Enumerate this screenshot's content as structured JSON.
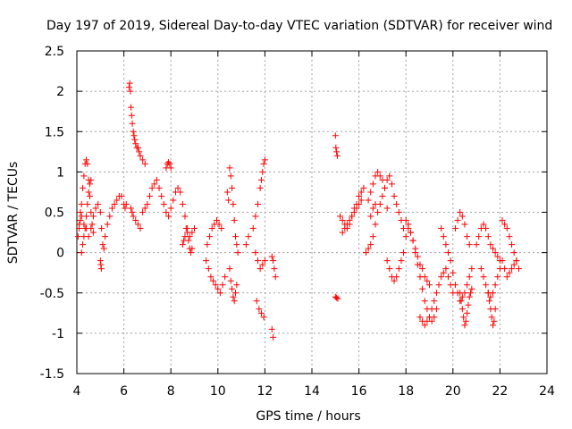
{
  "chart_data": {
    "type": "scatter",
    "title": "Day 197 of 2019, Sidereal Day-to-day VTEC variation (SDTVAR) for receiver wind",
    "xlabel": "GPS time / hours",
    "ylabel": "SDTVAR / TECUs",
    "xlim": [
      4,
      24
    ],
    "ylim": [
      -1.5,
      2.5
    ],
    "xticks": [
      4,
      6,
      8,
      10,
      12,
      14,
      16,
      18,
      20,
      22,
      24
    ],
    "yticks": [
      -1.5,
      -1,
      -0.5,
      0,
      0.5,
      1,
      1.5,
      2,
      2.5
    ],
    "xtick_labels": [
      "4",
      "6",
      "8",
      "10",
      "12",
      "14",
      "16",
      "18",
      "20",
      "22",
      "24"
    ],
    "ytick_labels": [
      "-1.5",
      "-1",
      "-0.5",
      "0",
      "0.5",
      "1",
      "1.5",
      "2",
      "2.5"
    ],
    "grid": true,
    "marker": "+",
    "color": "#ff0000",
    "series": [
      {
        "name": "SDTVAR",
        "x": [
          4.05,
          4.1,
          4.15,
          4.2,
          4.25,
          4.3,
          4.35,
          4.4,
          4.45,
          4.5,
          4.55,
          4.6,
          4.65,
          4.7,
          4.2,
          4.25,
          4.3,
          4.35,
          4.4,
          4.45,
          4.5,
          4.55,
          4.6,
          4.1,
          4.15,
          4.2,
          4.3,
          4.4,
          4.5,
          4.6,
          4.7,
          4.8,
          4.9,
          5.0,
          5.05,
          5.1,
          5.15,
          5.2,
          5.3,
          5.4,
          5.5,
          5.6,
          5.7,
          5.8,
          5.9,
          6.0,
          6.05,
          6.1,
          5.0,
          5.02,
          5.04,
          6.22,
          6.25,
          6.28,
          6.3,
          6.33,
          6.36,
          6.4,
          6.43,
          6.46,
          6.5,
          6.55,
          6.6,
          6.65,
          6.7,
          6.8,
          6.9,
          6.3,
          6.35,
          6.4,
          6.5,
          6.6,
          6.7,
          6.8,
          6.9,
          7.0,
          7.1,
          7.2,
          7.3,
          7.4,
          7.5,
          7.6,
          7.7,
          7.8,
          7.9,
          8.0,
          8.1,
          8.2,
          8.3,
          8.4,
          8.5,
          8.6,
          8.7,
          8.8,
          8.9,
          9.0,
          7.8,
          7.85,
          7.9,
          7.95,
          8.0,
          8.5,
          8.55,
          8.6,
          8.65,
          8.7,
          8.75,
          8.8,
          8.85,
          8.9,
          9.5,
          9.6,
          9.7,
          9.8,
          9.9,
          10.0,
          10.1,
          10.2,
          10.3,
          9.55,
          9.65,
          9.75,
          9.85,
          9.95,
          10.05,
          10.15,
          10.5,
          10.55,
          10.6,
          10.65,
          10.7,
          10.75,
          10.8,
          10.85,
          10.5,
          10.55,
          10.6,
          10.65,
          10.7,
          10.75,
          10.8,
          10.4,
          10.45,
          11.2,
          11.3,
          11.5,
          11.6,
          11.7,
          11.8,
          11.85,
          11.9,
          11.95,
          12.0,
          11.6,
          11.7,
          11.8,
          11.9,
          12.0,
          11.65,
          11.75,
          11.85,
          11.95,
          12.3,
          12.35,
          12.4,
          12.45,
          12.3,
          12.35,
          15.0,
          15.02,
          15.05,
          15.08,
          15.0,
          15.05,
          15.1,
          15.2,
          15.3,
          15.4,
          15.5,
          15.6,
          15.7,
          15.8,
          15.9,
          16.0,
          16.1,
          16.2,
          15.3,
          15.4,
          15.5,
          15.6,
          15.7,
          15.8,
          15.9,
          16.0,
          16.1,
          16.3,
          16.4,
          16.5,
          16.6,
          16.7,
          16.8,
          16.9,
          17.0,
          17.1,
          17.2,
          16.4,
          16.5,
          16.6,
          16.7,
          16.8,
          16.9,
          17.0,
          16.5,
          16.6,
          16.7,
          17.1,
          17.2,
          17.3,
          17.4,
          17.5,
          17.6,
          17.7,
          17.8,
          17.9,
          17.2,
          17.3,
          17.4,
          17.5,
          17.6,
          17.7,
          17.8,
          17.9,
          18.0,
          18.1,
          18.2,
          18.3,
          18.4,
          18.5,
          18.6,
          18.7,
          18.8,
          18.9,
          19.0,
          19.1,
          19.2,
          19.3,
          18.0,
          18.1,
          18.2,
          18.3,
          18.4,
          18.5,
          18.6,
          18.7,
          18.8,
          18.9,
          19.0,
          18.6,
          18.7,
          18.8,
          18.9,
          19.0,
          19.1,
          19.2,
          19.3,
          19.4,
          19.5,
          19.6,
          19.7,
          19.8,
          19.9,
          20.0,
          19.5,
          19.6,
          19.7,
          19.8,
          19.9,
          20.0,
          20.1,
          20.2,
          20.3,
          20.4,
          20.5,
          20.6,
          20.7,
          20.8,
          20.1,
          20.2,
          20.3,
          20.4,
          20.5,
          20.6,
          20.7,
          20.3,
          20.35,
          20.4,
          20.45,
          20.5,
          20.55,
          20.6,
          20.65,
          20.7,
          20.75,
          20.8,
          21.0,
          21.1,
          21.2,
          21.3,
          21.4,
          21.5,
          21.6,
          21.7,
          21.8,
          21.9,
          22.0,
          21.2,
          21.3,
          21.4,
          21.5,
          21.6,
          21.7,
          21.8,
          21.9,
          22.0,
          21.5,
          21.55,
          21.6,
          21.65,
          21.7,
          21.75,
          21.8,
          22.1,
          22.2,
          22.3,
          22.4,
          22.5,
          22.6,
          22.7,
          22.8,
          22.1,
          22.2,
          22.3,
          22.4,
          22.5,
          22.6,
          22.7
        ],
        "y": [
          0.2,
          0.35,
          0.5,
          0.6,
          0.8,
          0.95,
          1.1,
          1.15,
          1.1,
          0.9,
          0.7,
          0.5,
          0.35,
          0.25,
          0.0,
          0.1,
          0.2,
          0.3,
          0.45,
          0.6,
          0.75,
          0.85,
          0.9,
          0.3,
          0.4,
          0.45,
          0.35,
          0.3,
          0.2,
          0.3,
          0.45,
          0.55,
          0.6,
          0.5,
          0.3,
          0.1,
          0.05,
          0.2,
          0.35,
          0.45,
          0.55,
          0.6,
          0.65,
          0.7,
          0.7,
          0.6,
          0.55,
          0.6,
          -0.1,
          -0.15,
          -0.2,
          2.05,
          2.1,
          2.0,
          1.8,
          1.7,
          1.6,
          1.5,
          1.45,
          1.4,
          1.35,
          1.3,
          1.3,
          1.25,
          1.2,
          1.15,
          1.1,
          0.55,
          0.5,
          0.45,
          0.4,
          0.35,
          0.3,
          0.5,
          0.55,
          0.6,
          0.7,
          0.8,
          0.85,
          0.9,
          0.8,
          0.7,
          0.6,
          0.5,
          0.45,
          0.55,
          0.65,
          0.75,
          0.8,
          0.75,
          0.6,
          0.45,
          0.3,
          0.2,
          0.25,
          0.3,
          1.05,
          1.1,
          1.12,
          1.1,
          1.05,
          0.1,
          0.15,
          0.2,
          0.3,
          0.25,
          0.15,
          0.05,
          0.0,
          0.05,
          -0.1,
          -0.2,
          -0.3,
          -0.35,
          -0.4,
          -0.45,
          -0.5,
          -0.4,
          -0.3,
          0.1,
          0.2,
          0.3,
          0.35,
          0.4,
          0.35,
          0.3,
          1.05,
          0.95,
          0.8,
          0.6,
          0.4,
          0.2,
          0.1,
          0.0,
          -0.2,
          -0.35,
          -0.45,
          -0.55,
          -0.6,
          -0.5,
          -0.4,
          0.75,
          0.65,
          0.1,
          0.2,
          0.3,
          0.45,
          0.6,
          0.8,
          0.9,
          1.0,
          1.1,
          1.15,
          0.0,
          -0.1,
          -0.2,
          -0.15,
          -0.1,
          -0.6,
          -0.7,
          -0.75,
          -0.8,
          -0.05,
          -0.1,
          -0.2,
          -0.3,
          -0.95,
          -1.05,
          1.45,
          1.3,
          1.25,
          1.2,
          -0.55,
          -0.56,
          -0.57,
          0.45,
          0.4,
          0.35,
          0.3,
          0.35,
          0.45,
          0.55,
          0.6,
          0.7,
          0.75,
          0.8,
          0.25,
          0.3,
          0.35,
          0.4,
          0.45,
          0.5,
          0.55,
          0.6,
          0.65,
          0.0,
          0.05,
          0.1,
          0.2,
          0.35,
          0.5,
          0.6,
          0.7,
          0.8,
          0.55,
          0.65,
          0.75,
          0.85,
          0.95,
          1.0,
          0.95,
          0.9,
          0.45,
          0.55,
          0.6,
          0.8,
          0.9,
          0.95,
          0.85,
          0.7,
          0.6,
          0.5,
          0.4,
          0.3,
          -0.1,
          -0.2,
          -0.3,
          -0.35,
          -0.3,
          -0.2,
          -0.1,
          0.0,
          0.2,
          0.3,
          0.25,
          0.15,
          0.0,
          -0.15,
          -0.3,
          -0.45,
          -0.6,
          -0.7,
          -0.8,
          -0.85,
          -0.8,
          -0.7,
          0.4,
          0.35,
          0.25,
          0.15,
          0.05,
          -0.05,
          -0.15,
          -0.2,
          -0.3,
          -0.35,
          -0.4,
          -0.8,
          -0.85,
          -0.9,
          -0.85,
          -0.8,
          -0.7,
          -0.6,
          -0.5,
          -0.4,
          -0.3,
          -0.25,
          -0.2,
          -0.3,
          -0.4,
          -0.5,
          0.3,
          0.2,
          0.1,
          0.0,
          -0.1,
          -0.25,
          -0.4,
          -0.5,
          -0.6,
          -0.55,
          -0.5,
          -0.4,
          -0.3,
          -0.2,
          0.3,
          0.4,
          0.5,
          0.45,
          0.35,
          0.2,
          0.1,
          -0.5,
          -0.6,
          -0.7,
          -0.8,
          -0.9,
          -0.85,
          -0.75,
          -0.65,
          -0.55,
          -0.5,
          -0.45,
          0.1,
          0.2,
          0.3,
          0.35,
          0.3,
          0.2,
          0.1,
          0.05,
          0.0,
          -0.05,
          -0.1,
          -0.2,
          -0.3,
          -0.4,
          -0.5,
          -0.55,
          -0.5,
          -0.4,
          -0.3,
          -0.2,
          -0.5,
          -0.6,
          -0.7,
          -0.8,
          -0.9,
          -0.85,
          -0.7,
          0.4,
          0.35,
          0.3,
          0.2,
          0.1,
          0.0,
          -0.1,
          -0.2,
          -0.1,
          -0.2,
          -0.3,
          -0.25,
          -0.2,
          -0.15,
          -0.1
        ]
      }
    ]
  }
}
